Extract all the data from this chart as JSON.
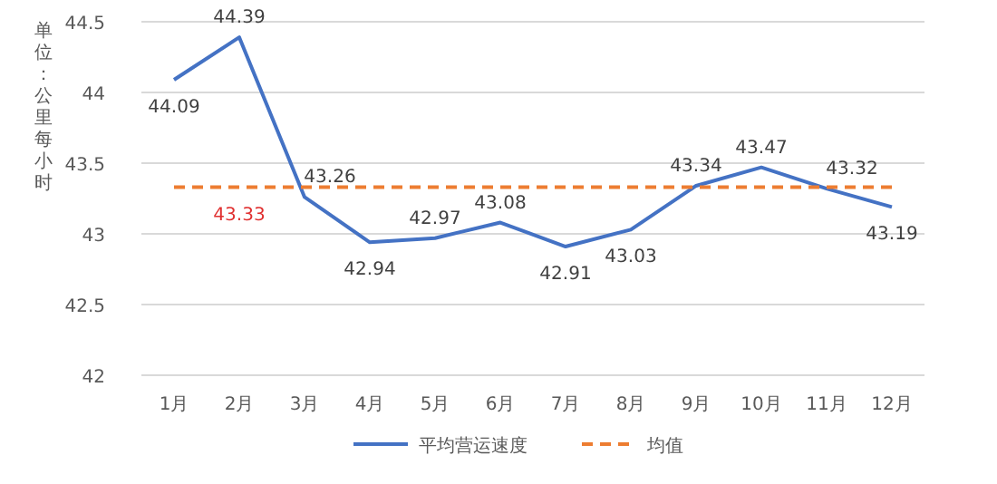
{
  "chart_data": {
    "type": "line",
    "ylabel": "单位：公里每小时",
    "categories": [
      "1月",
      "2月",
      "3月",
      "4月",
      "5月",
      "6月",
      "7月",
      "8月",
      "9月",
      "10月",
      "11月",
      "12月"
    ],
    "series": [
      {
        "name": "平均营运速度",
        "color": "#4472c4",
        "line_style": "solid",
        "values": [
          44.09,
          44.39,
          43.26,
          42.94,
          42.97,
          43.08,
          42.91,
          43.03,
          43.34,
          43.47,
          43.32,
          43.19
        ],
        "value_labels": [
          "44.09",
          "44.39",
          "43.26",
          "42.94",
          "42.97",
          "43.08",
          "42.91",
          "43.03",
          "43.34",
          "43.47",
          "43.32",
          "43.19"
        ]
      },
      {
        "name": "均值",
        "color": "#ed7d31",
        "line_style": "dashed",
        "values": [
          43.33,
          43.33,
          43.33,
          43.33,
          43.33,
          43.33,
          43.33,
          43.33,
          43.33,
          43.33,
          43.33,
          43.33
        ],
        "value_labels": [
          null,
          "43.33",
          null,
          null,
          null,
          null,
          null,
          null,
          null,
          null,
          null,
          null
        ]
      }
    ],
    "ylim": [
      42,
      44.5
    ],
    "yticks": [
      42,
      42.5,
      43,
      43.5,
      44,
      44.5
    ],
    "grid": "y",
    "legend": "bottom"
  }
}
